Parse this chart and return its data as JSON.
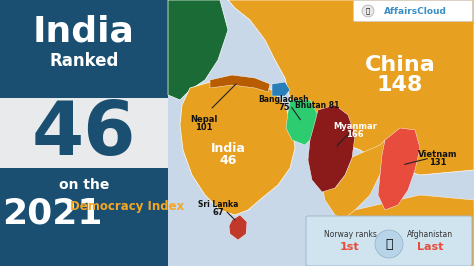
{
  "title_india": "India",
  "title_ranked": "Ranked",
  "title_46": "46",
  "title_on_the": "on the",
  "title_2021": "2021",
  "title_democracy": "Democracy Index",
  "left_dark_color": "#1a4f72",
  "left_mid_color": "#e8eaeb",
  "left_dark2_color": "#1a4f72",
  "orange_text": "#f5a623",
  "affairscloud_blue": "#3a8fc4",
  "map_bg_color": "#c8d8e8",
  "map_india_color": "#e8a020",
  "map_china_color": "#e8a020",
  "map_myanmar_color": "#8b1a1a",
  "map_srilanka_color": "#c0392b",
  "map_nepal_color": "#b85c00",
  "map_bangladesh_color": "#2ecc71",
  "map_bhutan_color": "#2980b9",
  "map_vietnam_color": "#e74c3c",
  "map_pakistan_color": "#1a6b35",
  "map_af_color": "#2ecc71",
  "norway_text_color": "#e74c3c",
  "label_dark": "#111111",
  "label_white": "#ffffff"
}
